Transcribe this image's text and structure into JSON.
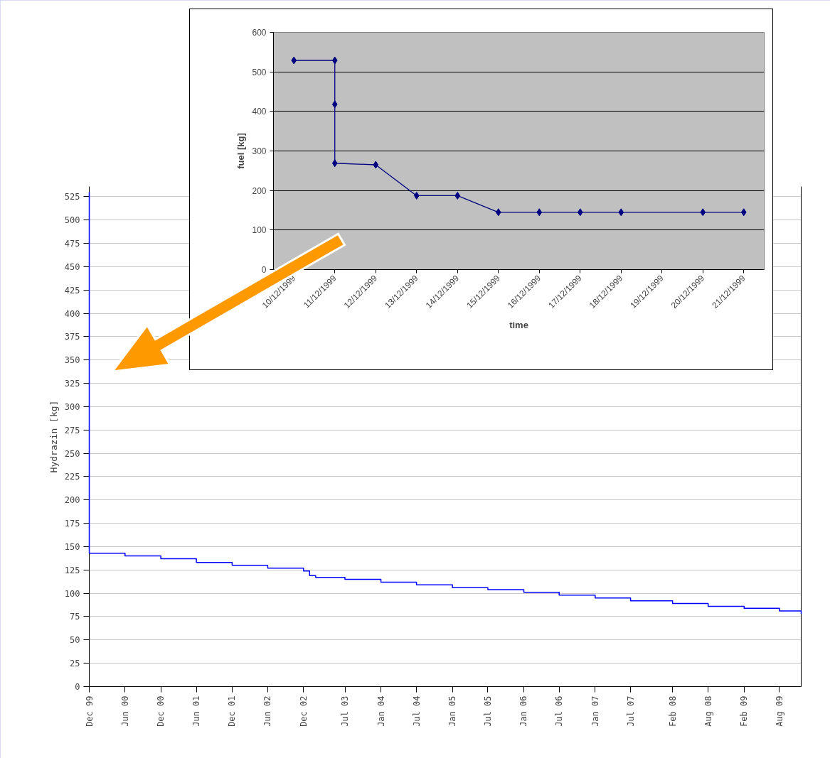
{
  "chart_data": [
    {
      "type": "step",
      "ylabel": "Hydrazin [kg]",
      "color": "#0000ff",
      "marker": "none",
      "grid": "y",
      "x": [
        "1999-12",
        "1999-12",
        "2000-06",
        "2000-12",
        "2001-06",
        "2001-12",
        "2002-06",
        "2002-12",
        "2003-01",
        "2003-02",
        "2003-07",
        "2004-01",
        "2004-07",
        "2005-01",
        "2005-07",
        "2006-01",
        "2006-07",
        "2007-01",
        "2007-07",
        "2008-02",
        "2008-08",
        "2009-02",
        "2009-08",
        "2009-11-20"
      ],
      "values": [
        530,
        143,
        140,
        137,
        133,
        130,
        127,
        124,
        119,
        117,
        115,
        112,
        109,
        106,
        104,
        101,
        98,
        95,
        92,
        89,
        86,
        84,
        81,
        78
      ],
      "xlim": [
        "1999-12",
        "2009-11-20"
      ],
      "ylim": [
        0,
        536
      ],
      "yticks": [
        0,
        25,
        50,
        75,
        100,
        125,
        150,
        175,
        200,
        225,
        250,
        275,
        300,
        325,
        350,
        375,
        400,
        425,
        450,
        475,
        500,
        525
      ],
      "xticks": [
        {
          "value": "1999-12",
          "label": "Dec 99"
        },
        {
          "value": "2000-06",
          "label": "Jun 00"
        },
        {
          "value": "2000-12",
          "label": "Dec 00"
        },
        {
          "value": "2001-06",
          "label": "Jun 01"
        },
        {
          "value": "2001-12",
          "label": "Dec 01"
        },
        {
          "value": "2002-06",
          "label": "Jun 02"
        },
        {
          "value": "2002-12",
          "label": "Dec 02"
        },
        {
          "value": "2003-07",
          "label": "Jul 03"
        },
        {
          "value": "2004-01",
          "label": "Jan 04"
        },
        {
          "value": "2004-07",
          "label": "Jul 04"
        },
        {
          "value": "2005-01",
          "label": "Jan 05"
        },
        {
          "value": "2005-07",
          "label": "Jul 05"
        },
        {
          "value": "2006-01",
          "label": "Jan 06"
        },
        {
          "value": "2006-07",
          "label": "Jul 06"
        },
        {
          "value": "2007-01",
          "label": "Jan 07"
        },
        {
          "value": "2007-07",
          "label": "Jul 07"
        },
        {
          "value": "2008-02",
          "label": "Feb 08"
        },
        {
          "value": "2008-08",
          "label": "Aug 08"
        },
        {
          "value": "2009-02",
          "label": "Feb 09"
        },
        {
          "value": "2009-08",
          "label": "Aug 09"
        }
      ]
    },
    {
      "type": "line",
      "xlabel": "time",
      "ylabel": "fuel [kg]",
      "color": "#000080",
      "marker": "diamond",
      "grid": "y",
      "x": [
        "1999-12-10",
        "1999-12-11",
        "1999-12-11",
        "1999-12-11",
        "1999-12-12",
        "1999-12-13",
        "1999-12-14",
        "1999-12-15",
        "1999-12-16",
        "1999-12-17",
        "1999-12-18",
        "1999-12-20",
        "1999-12-21"
      ],
      "values": [
        529,
        529,
        418,
        269,
        265,
        187,
        187,
        145,
        145,
        145,
        145,
        145,
        145
      ],
      "xlim": [
        "1999-12-09T12:00",
        "1999-12-21T12:00"
      ],
      "ylim": [
        0,
        600
      ],
      "yticks": [
        0,
        100,
        200,
        300,
        400,
        500,
        600
      ],
      "xticks": [
        {
          "value": "1999-12-10",
          "label": "10/12/1999"
        },
        {
          "value": "1999-12-11",
          "label": "11/12/1999"
        },
        {
          "value": "1999-12-12",
          "label": "12/12/1999"
        },
        {
          "value": "1999-12-13",
          "label": "13/12/1999"
        },
        {
          "value": "1999-12-14",
          "label": "14/12/1999"
        },
        {
          "value": "1999-12-15",
          "label": "15/12/1999"
        },
        {
          "value": "1999-12-16",
          "label": "16/12/1999"
        },
        {
          "value": "1999-12-17",
          "label": "17/12/1999"
        },
        {
          "value": "1999-12-18",
          "label": "18/12/1999"
        },
        {
          "value": "1999-12-19",
          "label": "19/12/1999"
        },
        {
          "value": "1999-12-20",
          "label": "20/12/1999"
        },
        {
          "value": "1999-12-21",
          "label": "21/12/1999"
        }
      ]
    }
  ]
}
